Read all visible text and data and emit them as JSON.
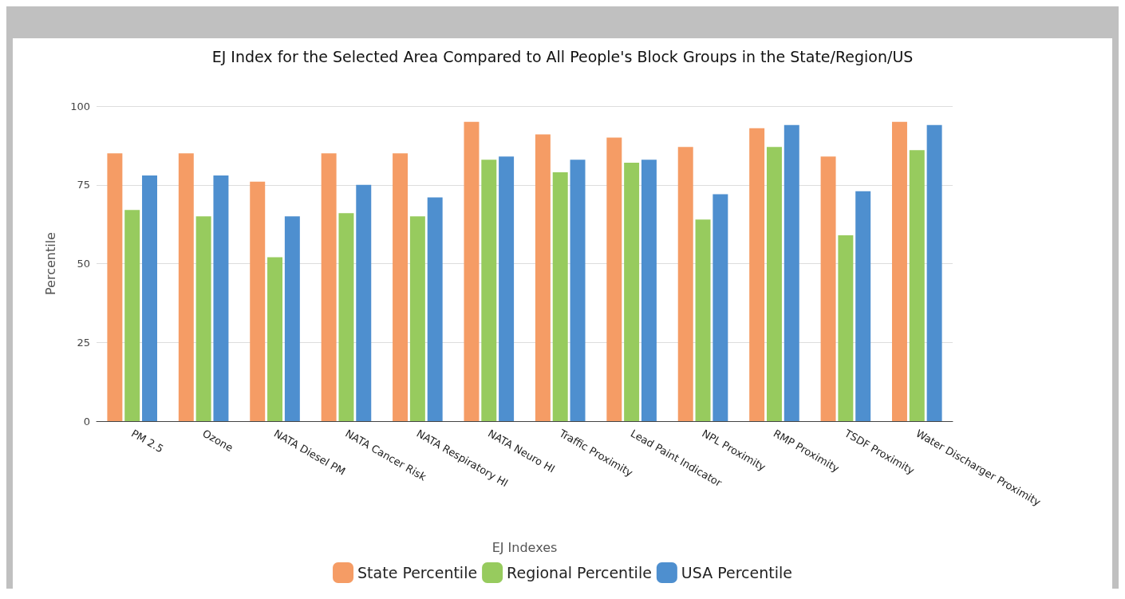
{
  "chart_data": {
    "type": "bar",
    "title": "EJ Index for the Selected Area Compared to All People's Block Groups in the State/Region/US",
    "xlabel": "EJ Indexes",
    "ylabel": "Percentile",
    "categories": [
      "PM 2.5",
      "Ozone",
      "NATA Diesel PM",
      "NATA Cancer Risk",
      "NATA Respiratory HI",
      "NATA Neuro HI",
      "Traffic Proximity",
      "Lead Paint Indicator",
      "NPL Proximity",
      "RMP Proximity",
      "TSDF Proximity",
      "Water Discharger Proximity"
    ],
    "series": [
      {
        "name": "State Percentile",
        "color": "#f59c65",
        "values": [
          85,
          85,
          76,
          85,
          85,
          95,
          91,
          90,
          87,
          93,
          84,
          95
        ]
      },
      {
        "name": "Regional Percentile",
        "color": "#97cb5e",
        "values": [
          67,
          65,
          52,
          66,
          65,
          83,
          79,
          82,
          64,
          87,
          59,
          86
        ]
      },
      {
        "name": "USA Percentile",
        "color": "#4e8fcf",
        "values": [
          78,
          78,
          65,
          75,
          71,
          84,
          83,
          83,
          72,
          94,
          73,
          94
        ]
      }
    ],
    "ylim": [
      0,
      100
    ],
    "yticks": [
      0,
      25,
      50,
      75,
      100
    ],
    "grid": "y",
    "legend": "bottom"
  }
}
